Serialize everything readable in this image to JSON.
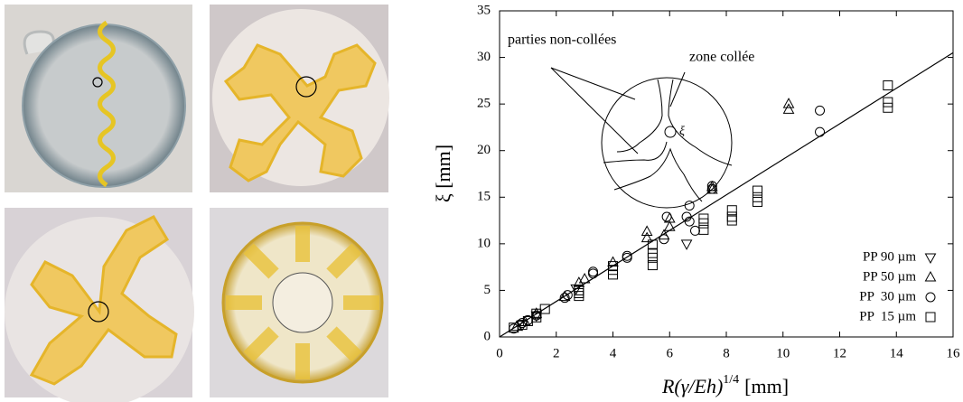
{
  "chart_data": {
    "type": "scatter",
    "xlabel": "R(γ/Eh)",
    "xlabel_exponent": "1/4",
    "xlabel_unit": "[mm]",
    "ylabel": "ξ [mm]",
    "annotations": [
      "parties non-collées",
      "zone collée",
      "ξ"
    ],
    "xlim": [
      0,
      16
    ],
    "ylim": [
      0,
      35
    ],
    "xticks": [
      0,
      2,
      4,
      6,
      8,
      10,
      12,
      14,
      16
    ],
    "yticks": [
      0,
      5,
      10,
      15,
      20,
      25,
      30,
      35
    ],
    "legend": "lower-right",
    "fit": {
      "x": [
        0,
        16
      ],
      "y": [
        0,
        30.5
      ],
      "color": "#000000"
    },
    "series": [
      {
        "name": "PP 90 µm",
        "color": "#000000",
        "marker": "triangle-down",
        "x": [
          0.8,
          1.3,
          2.7,
          6.6
        ],
        "values": [
          1.3,
          2.3,
          5.2,
          10
        ]
      },
      {
        "name": "PP 50 µm",
        "color": "#000000",
        "marker": "triangle-up",
        "x": [
          10.2,
          10.2,
          5.2,
          5.2,
          6.0,
          6.0,
          5.8,
          3.0,
          2.8,
          4.0,
          2.3,
          1.3,
          0.9,
          0.6,
          7.5,
          7.5
        ],
        "values": [
          25,
          24.4,
          11.3,
          10.6,
          12.7,
          11.8,
          10.9,
          6.2,
          5.8,
          8,
          4.3,
          2.5,
          1.6,
          1.1,
          16.1,
          15.8
        ]
      },
      {
        "name": "PP  30 µm",
        "color": "#000000",
        "marker": "circle",
        "x": [
          11.3,
          11.3,
          7.5,
          7.5,
          6.7,
          6.6,
          6.7,
          5.9,
          5.8,
          4.5,
          4.5,
          3.3,
          3.3,
          2.4,
          2.3,
          1.3,
          1.0,
          0.8,
          0.5,
          6.9
        ],
        "values": [
          24.3,
          22,
          16.2,
          15.9,
          14.1,
          12.9,
          12.4,
          12.9,
          10.5,
          8.7,
          8.5,
          7,
          6.8,
          4.5,
          4.2,
          2.3,
          1.8,
          1.5,
          0.9,
          11.4
        ]
      },
      {
        "name": "PP  15 µm",
        "color": "#000000",
        "marker": "square",
        "x": [
          13.7,
          13.7,
          13.7,
          9.1,
          9.1,
          9.1,
          8.2,
          8.2,
          8.2,
          7.2,
          7.2,
          7.2,
          5.4,
          5.4,
          5.4,
          5.4,
          4,
          4,
          4,
          2.8,
          2.8,
          2.8,
          1.6,
          1.3,
          1.3,
          1,
          0.8,
          0.5
        ],
        "values": [
          27,
          25.2,
          24.6,
          15.7,
          15,
          14.5,
          13.6,
          12.9,
          12.5,
          12.7,
          12.2,
          11.5,
          9.9,
          9,
          8.5,
          7.7,
          7.6,
          7.2,
          6.7,
          5,
          4.7,
          4.4,
          3,
          2.5,
          2.1,
          1.7,
          1.3,
          1
        ]
      }
    ]
  }
}
